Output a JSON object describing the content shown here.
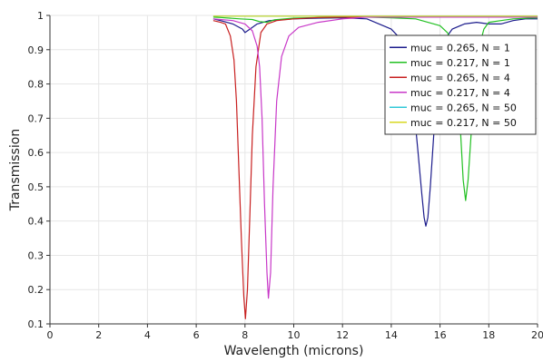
{
  "chart_data": {
    "type": "line",
    "xlabel": "Wavelength (microns)",
    "ylabel": "Transmission",
    "xlim": [
      0,
      20
    ],
    "ylim": [
      0.1,
      1
    ],
    "xticks": [
      0,
      2,
      4,
      6,
      8,
      10,
      12,
      14,
      16,
      18,
      20
    ],
    "yticks": [
      0.1,
      0.2,
      0.3,
      0.4,
      0.5,
      0.6,
      0.7,
      0.8,
      0.9,
      1
    ],
    "grid": true,
    "legend_position": "top-right",
    "series": [
      {
        "name": "muc = 0.265, N = 1",
        "color": "#1c1c8c",
        "points": [
          [
            6.7,
            0.99
          ],
          [
            7,
            0.985
          ],
          [
            7.5,
            0.975
          ],
          [
            7.9,
            0.96
          ],
          [
            8,
            0.95
          ],
          [
            8.2,
            0.96
          ],
          [
            8.5,
            0.975
          ],
          [
            9,
            0.985
          ],
          [
            10,
            0.99
          ],
          [
            11,
            0.992
          ],
          [
            12,
            0.993
          ],
          [
            13,
            0.99
          ],
          [
            13.5,
            0.975
          ],
          [
            14,
            0.96
          ],
          [
            14.4,
            0.93
          ],
          [
            14.7,
            0.85
          ],
          [
            14.9,
            0.75
          ],
          [
            15.1,
            0.6
          ],
          [
            15.25,
            0.48
          ],
          [
            15.35,
            0.41
          ],
          [
            15.42,
            0.385
          ],
          [
            15.5,
            0.41
          ],
          [
            15.6,
            0.5
          ],
          [
            15.75,
            0.66
          ],
          [
            15.9,
            0.8
          ],
          [
            16.1,
            0.92
          ],
          [
            16.5,
            0.96
          ],
          [
            17,
            0.975
          ],
          [
            17.5,
            0.98
          ],
          [
            18,
            0.975
          ],
          [
            18.5,
            0.975
          ],
          [
            19,
            0.985
          ],
          [
            19.5,
            0.99
          ],
          [
            20,
            0.99
          ]
        ]
      },
      {
        "name": "muc = 0.217, N = 1",
        "color": "#22c022",
        "points": [
          [
            6.7,
            0.995
          ],
          [
            7,
            0.994
          ],
          [
            7.8,
            0.99
          ],
          [
            8.3,
            0.988
          ],
          [
            8.6,
            0.982
          ],
          [
            8.9,
            0.98
          ],
          [
            9.2,
            0.987
          ],
          [
            10,
            0.992
          ],
          [
            11,
            0.994
          ],
          [
            12,
            0.995
          ],
          [
            13,
            0.995
          ],
          [
            14,
            0.993
          ],
          [
            15,
            0.99
          ],
          [
            15.5,
            0.98
          ],
          [
            16,
            0.97
          ],
          [
            16.3,
            0.95
          ],
          [
            16.5,
            0.92
          ],
          [
            16.7,
            0.8
          ],
          [
            16.85,
            0.65
          ],
          [
            16.95,
            0.52
          ],
          [
            17.05,
            0.46
          ],
          [
            17.15,
            0.52
          ],
          [
            17.3,
            0.68
          ],
          [
            17.5,
            0.88
          ],
          [
            17.8,
            0.96
          ],
          [
            18,
            0.98
          ],
          [
            18.5,
            0.985
          ],
          [
            19,
            0.99
          ],
          [
            20,
            0.993
          ]
        ]
      },
      {
        "name": "muc = 0.265, N = 4",
        "color": "#c82020",
        "points": [
          [
            6.7,
            0.985
          ],
          [
            7,
            0.98
          ],
          [
            7.2,
            0.975
          ],
          [
            7.4,
            0.94
          ],
          [
            7.55,
            0.87
          ],
          [
            7.65,
            0.75
          ],
          [
            7.75,
            0.55
          ],
          [
            7.85,
            0.35
          ],
          [
            7.95,
            0.18
          ],
          [
            8.02,
            0.115
          ],
          [
            8.1,
            0.2
          ],
          [
            8.2,
            0.42
          ],
          [
            8.3,
            0.65
          ],
          [
            8.45,
            0.85
          ],
          [
            8.65,
            0.95
          ],
          [
            8.9,
            0.975
          ],
          [
            9.3,
            0.985
          ],
          [
            10,
            0.99
          ],
          [
            11,
            0.994
          ],
          [
            12,
            0.995
          ],
          [
            14,
            0.995
          ],
          [
            16,
            0.995
          ],
          [
            18,
            0.995
          ],
          [
            20,
            0.995
          ]
        ]
      },
      {
        "name": "muc = 0.217, N = 4",
        "color": "#c838c8",
        "points": [
          [
            6.7,
            0.99
          ],
          [
            7.5,
            0.985
          ],
          [
            8,
            0.975
          ],
          [
            8.3,
            0.955
          ],
          [
            8.5,
            0.91
          ],
          [
            8.6,
            0.85
          ],
          [
            8.7,
            0.7
          ],
          [
            8.8,
            0.45
          ],
          [
            8.9,
            0.25
          ],
          [
            8.96,
            0.175
          ],
          [
            9.05,
            0.25
          ],
          [
            9.15,
            0.5
          ],
          [
            9.3,
            0.75
          ],
          [
            9.5,
            0.88
          ],
          [
            9.8,
            0.94
          ],
          [
            10.2,
            0.965
          ],
          [
            11,
            0.98
          ],
          [
            12,
            0.99
          ],
          [
            13,
            0.995
          ],
          [
            15,
            0.995
          ],
          [
            17,
            0.995
          ],
          [
            20,
            0.995
          ]
        ]
      },
      {
        "name": "muc = 0.265, N = 50",
        "color": "#30c8d8",
        "points": [
          [
            6.7,
            0.998
          ],
          [
            10,
            0.998
          ],
          [
            14,
            0.998
          ],
          [
            17,
            0.998
          ],
          [
            20,
            0.998
          ]
        ]
      },
      {
        "name": "muc = 0.217, N = 50",
        "color": "#d8d820",
        "points": [
          [
            6.7,
            0.998
          ],
          [
            10,
            0.998
          ],
          [
            14,
            0.998
          ],
          [
            17,
            0.998
          ],
          [
            20,
            0.998
          ]
        ]
      }
    ]
  }
}
